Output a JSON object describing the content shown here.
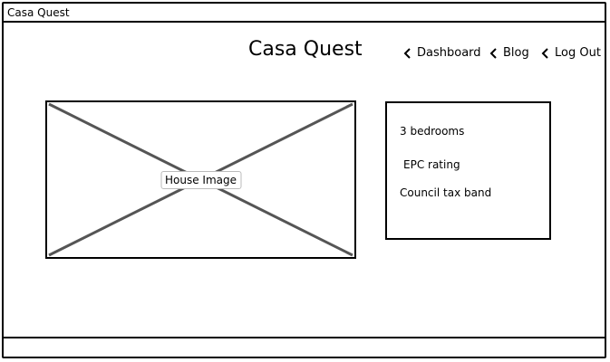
{
  "window": {
    "title": "Casa Quest"
  },
  "header": {
    "title": "Casa Quest",
    "nav": [
      {
        "label": "Dashboard",
        "icon": "chevron-left-icon"
      },
      {
        "label": "Blog",
        "icon": "chevron-left-icon"
      },
      {
        "label": "Log Out",
        "icon": "chevron-left-icon"
      }
    ]
  },
  "main": {
    "image": {
      "label": "House Image"
    },
    "details": [
      {
        "label": "3 bedrooms"
      },
      {
        "label": "EPC rating"
      },
      {
        "label": "Council tax band"
      }
    ]
  }
}
